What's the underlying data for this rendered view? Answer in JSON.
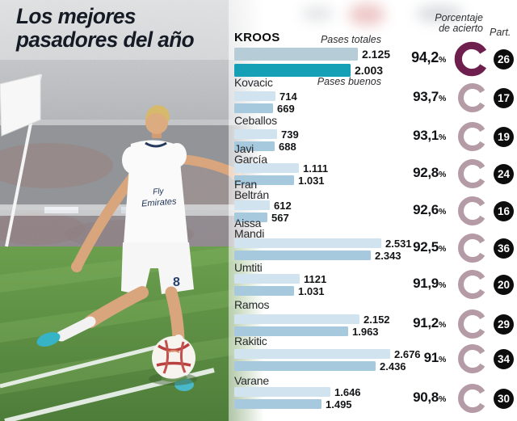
{
  "title": {
    "line1": "Los mejores",
    "line2": "pasadores del año"
  },
  "legend": {
    "pases_totales": "Pases totales",
    "pases_buenos": "Pases buenos"
  },
  "columns": {
    "accuracy_line1": "Porcentaje",
    "accuracy_line2": "de acierto",
    "participation": "Part."
  },
  "misc": {
    "percent_symbol": "%"
  },
  "photo": {
    "jersey_sponsor_line1": "Fly",
    "jersey_sponsor_line2": "Emirates",
    "shorts_number": "8"
  },
  "colors": {
    "bar_light": "#d0e3ef",
    "bar_mid": "#a6c9de",
    "kroos_bar_top": "#b6cdd7",
    "kroos_bar_teal": "#16a0b6",
    "donut_dark": "#6e1f4e",
    "donut_light": "#b49ba5",
    "badge_bg": "#0d0d0d",
    "title_color": "#151b25"
  },
  "chart_data": {
    "type": "bar",
    "orientation": "horizontal",
    "title": "Los mejores pasadores del año",
    "series": [
      {
        "name": "Pases totales"
      },
      {
        "name": "Pases buenos"
      }
    ],
    "extra_columns": [
      "Porcentaje de acierto",
      "Part."
    ],
    "players": [
      {
        "name_lines": [
          "KROOS"
        ],
        "highlight": true,
        "total": 2125,
        "good": 2003,
        "display_total": "2.125",
        "display_good": "2.003",
        "accuracy": "94,2",
        "appearances": "26"
      },
      {
        "name_lines": [
          "Kovacic"
        ],
        "total": 714,
        "good": 669,
        "display_total": "714",
        "display_good": "669",
        "accuracy": "93,7",
        "appearances": "17"
      },
      {
        "name_lines": [
          "Ceballos"
        ],
        "total": 739,
        "good": 688,
        "display_total": "739",
        "display_good": "688",
        "accuracy": "93,1",
        "appearances": "19"
      },
      {
        "name_lines": [
          "Javi",
          "García"
        ],
        "total": 1111,
        "good": 1031,
        "display_total": "1.111",
        "display_good": "1.031",
        "accuracy": "92,8",
        "appearances": "24"
      },
      {
        "name_lines": [
          "Fran",
          "Beltrán"
        ],
        "total": 612,
        "good": 567,
        "display_total": "612",
        "display_good": "567",
        "accuracy": "92,6",
        "appearances": "16"
      },
      {
        "name_lines": [
          "Aissa",
          "Mandi"
        ],
        "total": 2531,
        "good": 2343,
        "display_total": "2.531",
        "display_good": "2.343",
        "accuracy": "92,5",
        "appearances": "36"
      },
      {
        "name_lines": [
          "Umtiti"
        ],
        "total": 1121,
        "good": 1031,
        "display_total": "1121",
        "display_good": "1.031",
        "accuracy": "91,9",
        "appearances": "20"
      },
      {
        "name_lines": [
          "Ramos"
        ],
        "total": 2152,
        "good": 1963,
        "display_total": "2.152",
        "display_good": "1.963",
        "accuracy": "91,2",
        "appearances": "29"
      },
      {
        "name_lines": [
          "Rakitic"
        ],
        "total": 2676,
        "good": 2436,
        "display_total": "2.676",
        "display_good": "2.436",
        "accuracy": "91",
        "appearances": "34"
      },
      {
        "name_lines": [
          "Varane"
        ],
        "total": 1646,
        "good": 1495,
        "display_total": "1.646",
        "display_good": "1.495",
        "accuracy": "90,8",
        "appearances": "30"
      }
    ]
  }
}
